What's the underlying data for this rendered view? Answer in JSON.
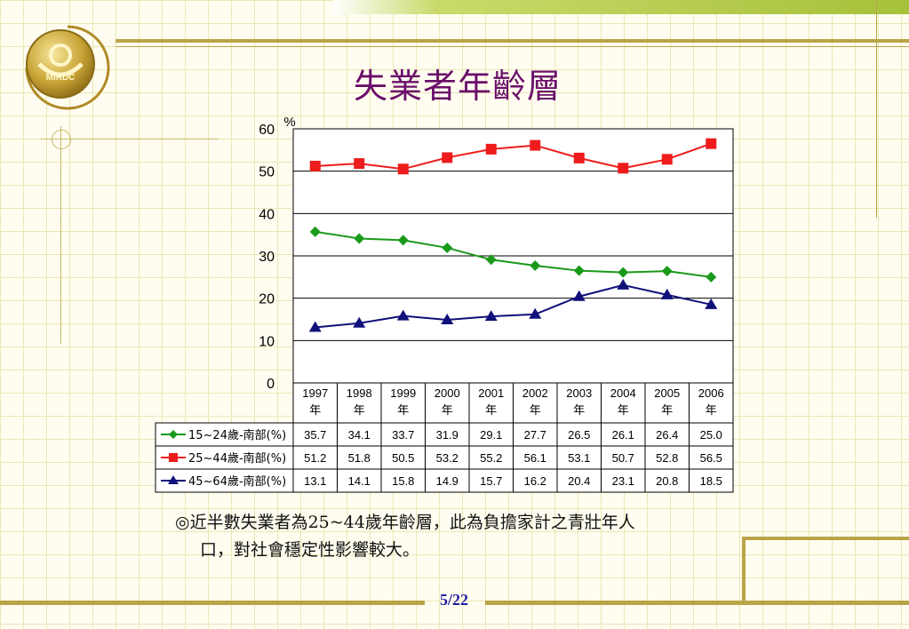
{
  "title": "失業者年齡層",
  "page_number": "5/22",
  "caption": {
    "line1": "◎近半數失業者為25~44歲年齡層，此為負擔家計之青壯年人",
    "line2": "口，對社會穩定性影響較大。"
  },
  "chart_data": {
    "type": "line",
    "ylabel": "%",
    "ylim": [
      0,
      60
    ],
    "yticks": [
      0,
      10,
      20,
      30,
      40,
      50,
      60
    ],
    "grid": true,
    "categories": [
      "1997",
      "1998",
      "1999",
      "2000",
      "2001",
      "2002",
      "2003",
      "2004",
      "2005",
      "2006"
    ],
    "category_suffix": "年",
    "series": [
      {
        "name": "15~24歲-南部(%)",
        "color": "#1a9a1a",
        "marker": "diamond",
        "values": [
          35.7,
          34.1,
          33.7,
          31.9,
          29.1,
          27.7,
          26.5,
          26.1,
          26.4,
          25.0
        ],
        "labels": [
          "35.7",
          "34.1",
          "33.7",
          "31.9",
          "29.1",
          "27.7",
          "26.5",
          "26.1",
          "26.4",
          "25.0"
        ]
      },
      {
        "name": "25~44歲-南部(%)",
        "color": "#ee1c1c",
        "marker": "square",
        "values": [
          51.2,
          51.8,
          50.5,
          53.2,
          55.2,
          56.1,
          53.1,
          50.7,
          52.8,
          56.5
        ],
        "labels": [
          "51.2",
          "51.8",
          "50.5",
          "53.2",
          "55.2",
          "56.1",
          "53.1",
          "50.7",
          "52.8",
          "56.5"
        ]
      },
      {
        "name": "45~64歲-南部(%)",
        "color": "#10107a",
        "marker": "triangle",
        "values": [
          13.1,
          14.1,
          15.8,
          14.9,
          15.7,
          16.2,
          20.4,
          23.1,
          20.8,
          18.5
        ],
        "labels": [
          "13.1",
          "14.1",
          "15.8",
          "14.9",
          "15.7",
          "16.2",
          "20.4",
          "23.1",
          "20.8",
          "18.5"
        ]
      }
    ]
  }
}
